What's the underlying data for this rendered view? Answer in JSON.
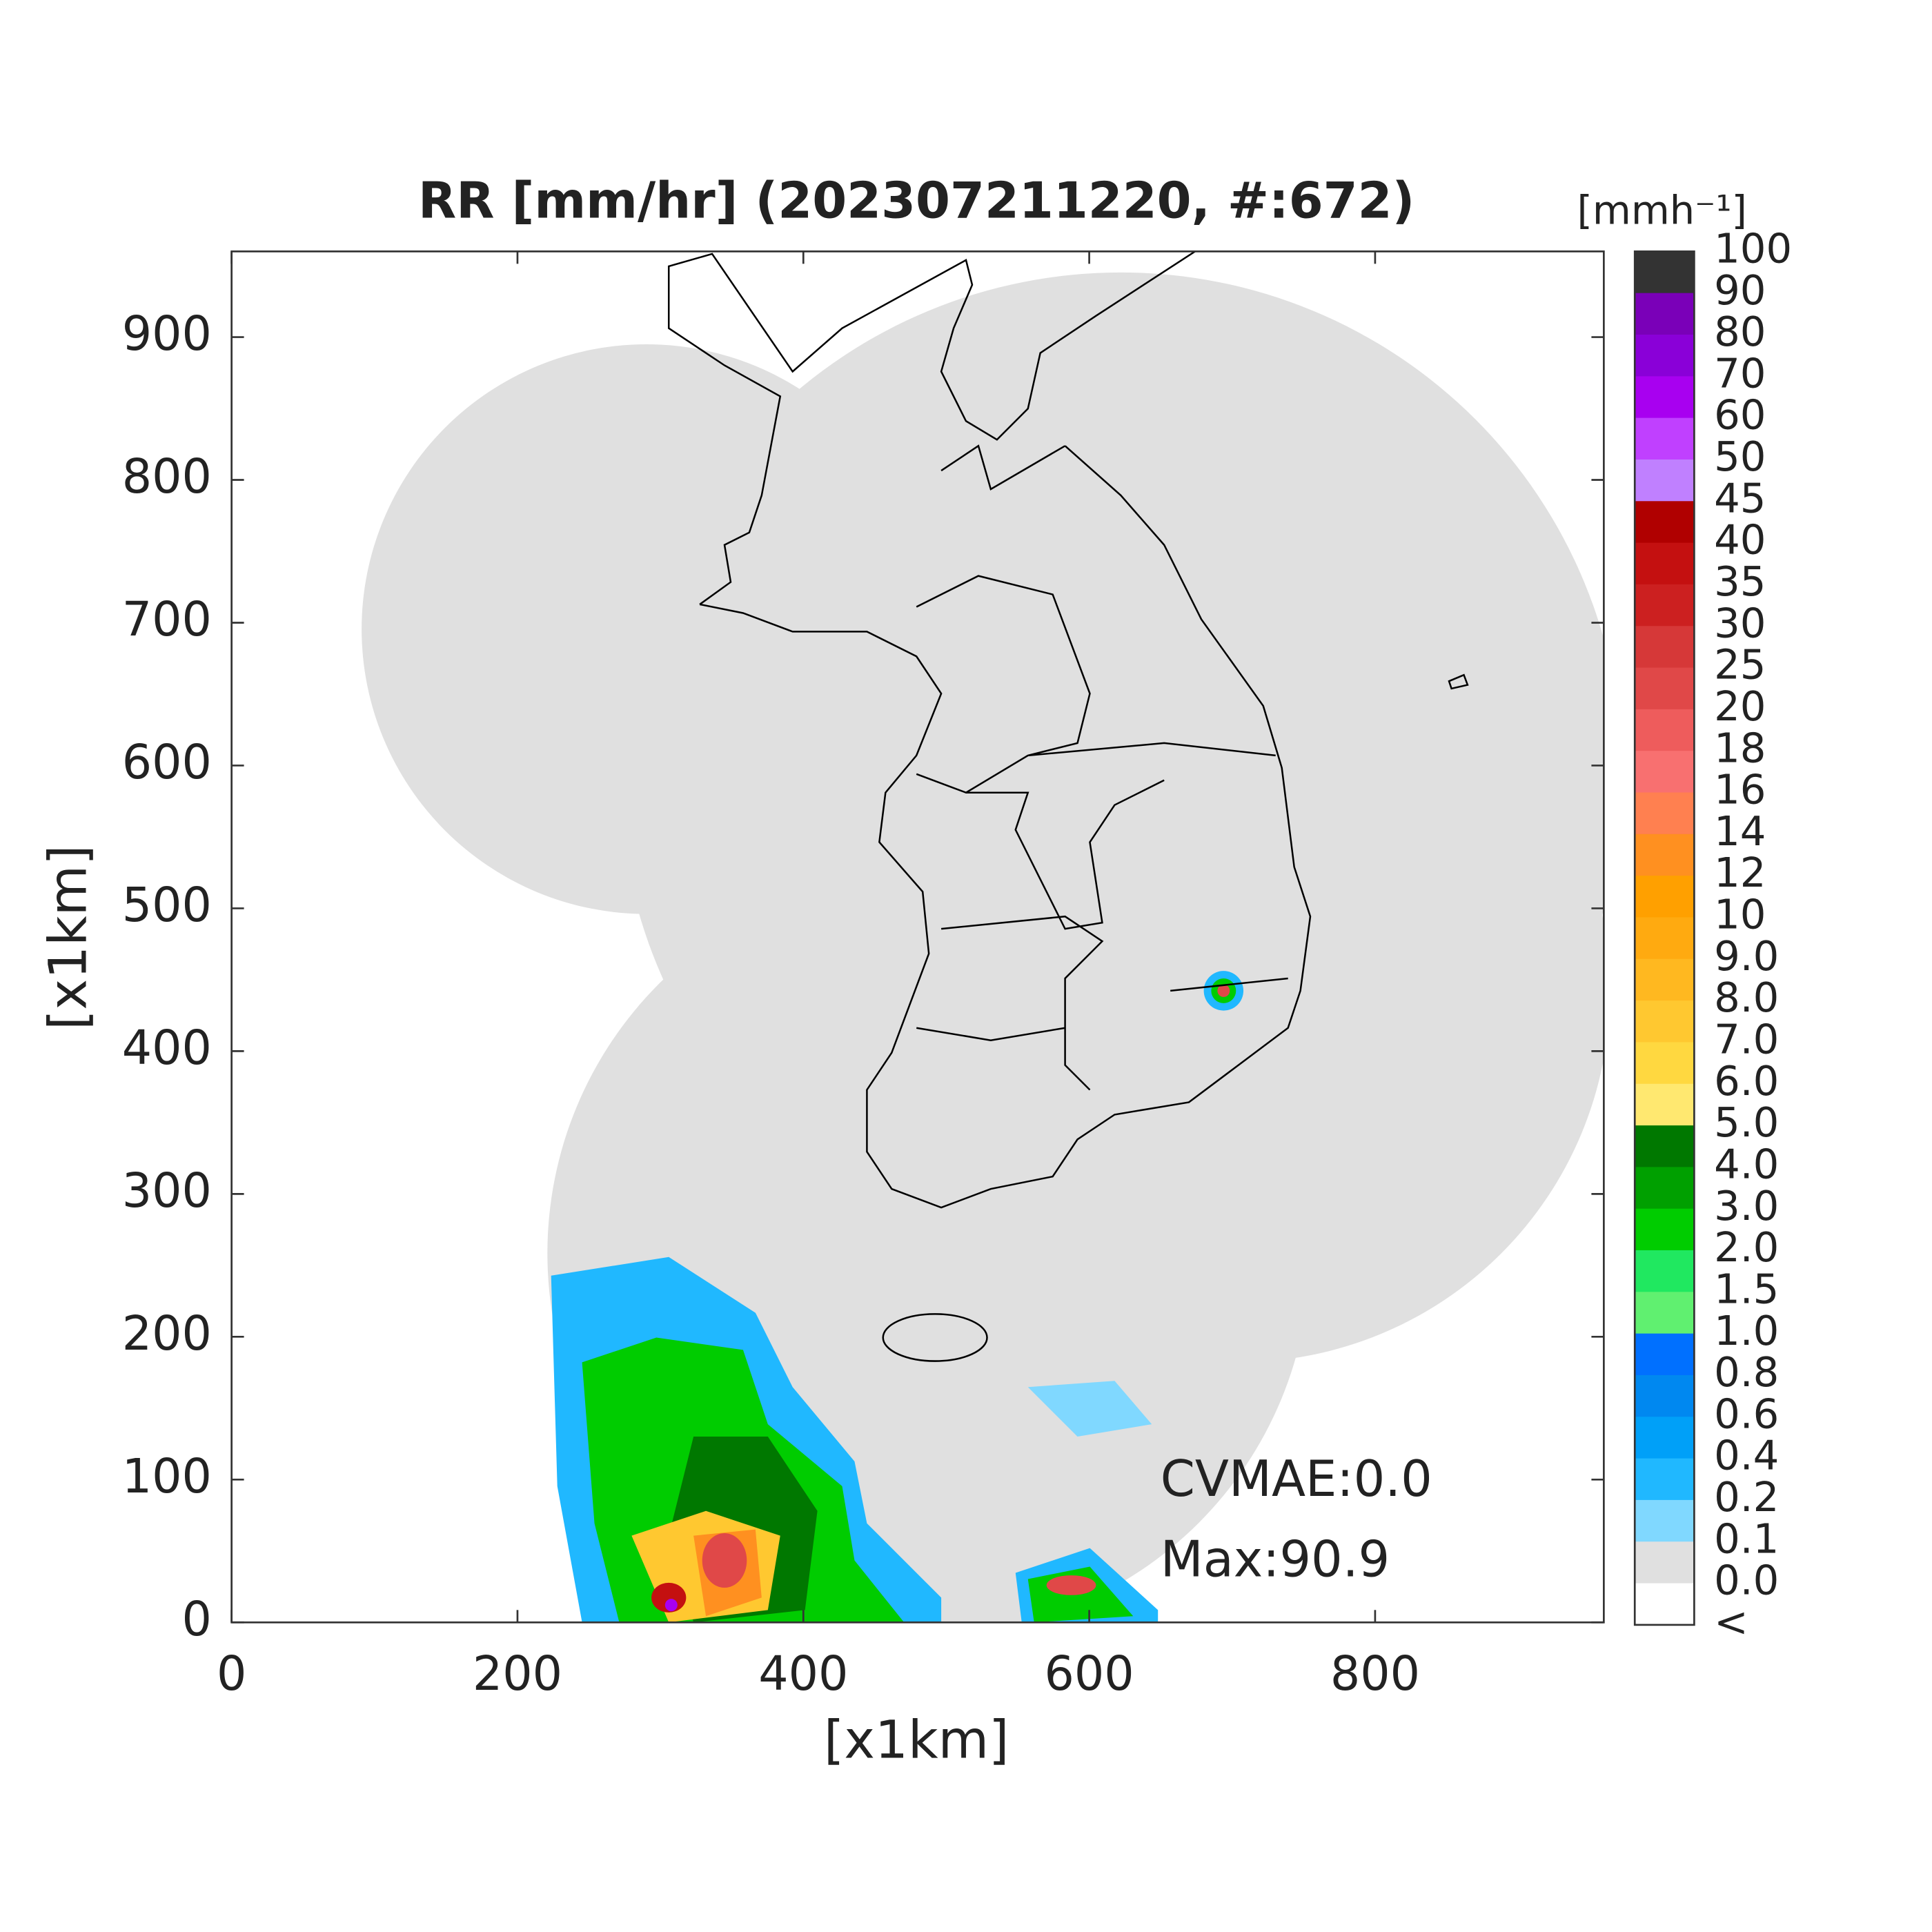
{
  "chart_data": {
    "type": "map",
    "title": "RR [mm/hr] (202307211220, #:672)",
    "x_label": "[x1km]",
    "y_label": "[x1km]",
    "xlim": [
      0,
      960
    ],
    "ylim": [
      0,
      960
    ],
    "xticks": [
      0,
      200,
      400,
      600,
      800
    ],
    "yticks": [
      0,
      100,
      200,
      300,
      400,
      500,
      600,
      700,
      800,
      900
    ],
    "annotations": [
      "CVMAE:0.0",
      "Max:90.9"
    ],
    "colorbar": {
      "label": "[mmh⁻¹]",
      "levels": [
        "100",
        "90",
        "80",
        "70",
        "60",
        "50",
        "45",
        "40",
        "35",
        "30",
        "25",
        "20",
        "18",
        "16",
        "14",
        "12",
        "10",
        "9.0",
        "8.0",
        "7.0",
        "6.0",
        "5.0",
        "4.0",
        "3.0",
        "2.0",
        "1.5",
        "1.0",
        "0.8",
        "0.6",
        "0.4",
        "0.2",
        "0.1",
        "0.0",
        "<"
      ],
      "colors": [
        "#333333",
        "#7a00b8",
        "#8a00d8",
        "#a800f0",
        "#c040ff",
        "#c080ff",
        "#b00000",
        "#c41010",
        "#cc2020",
        "#d63838",
        "#e04848",
        "#ee5c5c",
        "#f87070",
        "#ff8050",
        "#ff9020",
        "#ffa000",
        "#ffaa10",
        "#ffb820",
        "#ffc830",
        "#ffd840",
        "#ffe870",
        "#007800",
        "#00a000",
        "#00cc00",
        "#20e860",
        "#60f070",
        "#0070ff",
        "#0088f0",
        "#00a0f8",
        "#20b8ff",
        "#80d8ff",
        "#e0e0e0",
        "#ffffff"
      ]
    }
  }
}
